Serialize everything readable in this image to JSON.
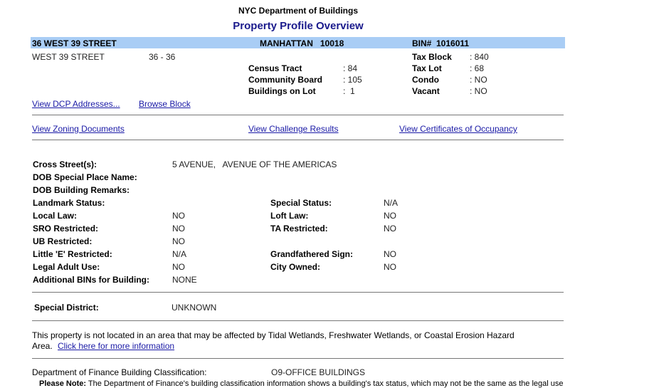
{
  "header": {
    "agency": "NYC Department of Buildings",
    "title": "Property Profile Overview"
  },
  "bar": {
    "address": "36 WEST 39 STREET",
    "borough_zip": "MANHATTAN   10018",
    "bin": "BIN#  1016011",
    "color": "#a9cdf5"
  },
  "address_range": {
    "street": "WEST 39 STREET",
    "range": "36 - 36"
  },
  "lot_info": [
    {
      "label": "Census Tract",
      "value": ": 84"
    },
    {
      "label": "Community Board",
      "value": ": 105"
    },
    {
      "label": "Buildings on Lot",
      "value": ":  1"
    }
  ],
  "tax_info": [
    {
      "label": "Tax Block",
      "value": ": 840"
    },
    {
      "label": "Tax Lot",
      "value": ": 68"
    },
    {
      "label": "Condo",
      "value": ": NO"
    },
    {
      "label": "Vacant",
      "value": ": NO"
    }
  ],
  "links1": {
    "dcp": "View DCP Addresses...",
    "browse": "Browse Block"
  },
  "links2": {
    "zoning": "View Zoning Documents",
    "challenge": "View Challenge Results",
    "co": "View Certificates of Occupancy"
  },
  "details": {
    "cross_label": "Cross Street(s):",
    "cross_value": "5 AVENUE,   AVENUE OF THE AMERICAS",
    "place_label": "DOB Special Place Name:",
    "remarks_label": "DOB Building Remarks:",
    "left": [
      {
        "label": "Landmark Status:",
        "value": ""
      },
      {
        "label": "Local Law:",
        "value": "NO"
      },
      {
        "label": "SRO Restricted:",
        "value": "NO"
      },
      {
        "label": "UB Restricted:",
        "value": "NO"
      },
      {
        "label": "Little 'E' Restricted:",
        "value": "N/A"
      },
      {
        "label": "Legal Adult Use:",
        "value": "NO"
      },
      {
        "label": "Additional BINs for Building:",
        "value": "NONE"
      }
    ],
    "right": [
      {
        "label": "Special Status:",
        "value": "N/A"
      },
      {
        "label": "Loft Law:",
        "value": "NO"
      },
      {
        "label": "TA Restricted:",
        "value": "NO"
      },
      {
        "label": "",
        "value": ""
      },
      {
        "label": "Grandfathered Sign:",
        "value": "NO"
      },
      {
        "label": "City Owned:",
        "value": "NO"
      }
    ]
  },
  "district": {
    "label": "Special District:",
    "value": "UNKNOWN"
  },
  "wetlands": {
    "text1": "This property is not located in an area that may be affected by Tidal Wetlands, Freshwater Wetlands, or Coastal Erosion Hazard",
    "text2": "Area.",
    "link": "Click here for more information"
  },
  "finance": {
    "label": "Department of Finance Building Classification:",
    "value": "O9-OFFICE BUILDINGS",
    "note_label": "Please Note:",
    "note": "The Department of Finance's building classification information shows a building's tax status, which may not be the same as the legal use"
  }
}
